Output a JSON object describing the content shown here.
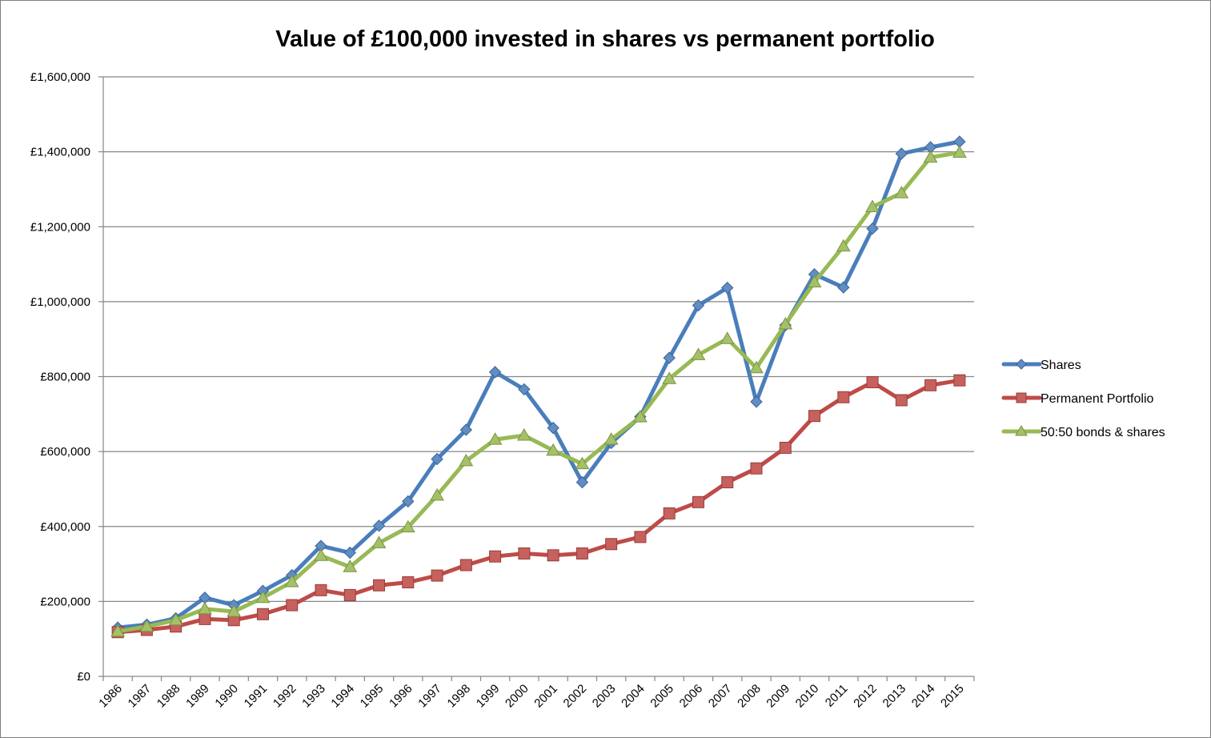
{
  "chart_data": {
    "type": "line",
    "title": "Value of £100,000 invested in shares vs permanent portfolio",
    "xlabel": "",
    "ylabel": "",
    "categories": [
      "1986",
      "1987",
      "1988",
      "1989",
      "1990",
      "1991",
      "1992",
      "1993",
      "1994",
      "1995",
      "1996",
      "1997",
      "1998",
      "1999",
      "2000",
      "2001",
      "2002",
      "2003",
      "2004",
      "2005",
      "2006",
      "2007",
      "2008",
      "2009",
      "2010",
      "2011",
      "2012",
      "2013",
      "2014",
      "2015"
    ],
    "ylim": [
      0,
      1600000
    ],
    "yticks": [
      0,
      200000,
      400000,
      600000,
      800000,
      1000000,
      1200000,
      1400000,
      1600000
    ],
    "ytick_labels": [
      "£0",
      "£200,000",
      "£400,000",
      "£600,000",
      "£800,000",
      "£1,000,000",
      "£1,200,000",
      "£1,400,000",
      "£1,600,000"
    ],
    "grid": true,
    "legend_position": "right",
    "series": [
      {
        "name": "Shares",
        "color": "#4a7ebb",
        "marker": "diamond",
        "values": [
          130000,
          138000,
          155000,
          210000,
          190000,
          228000,
          270000,
          348000,
          330000,
          402000,
          467000,
          580000,
          658000,
          812000,
          766000,
          663000,
          518000,
          623000,
          693000,
          850000,
          990000,
          1037000,
          733000,
          937000,
          1073000,
          1038000,
          1195000,
          1395000,
          1412000,
          1427000
        ]
      },
      {
        "name": "Permanent Portfolio",
        "color": "#be4b48",
        "marker": "square",
        "values": [
          118000,
          124000,
          133000,
          153000,
          150000,
          166000,
          190000,
          230000,
          217000,
          243000,
          251000,
          269000,
          297000,
          320000,
          328000,
          323000,
          328000,
          353000,
          372000,
          435000,
          465000,
          518000,
          555000,
          610000,
          695000,
          745000,
          785000,
          737000,
          777000,
          790000
        ]
      },
      {
        "name": "50:50 bonds & shares",
        "color": "#98b954",
        "marker": "triangle",
        "values": [
          120000,
          133000,
          150000,
          180000,
          173000,
          210000,
          252000,
          322000,
          292000,
          356000,
          398000,
          483000,
          575000,
          632000,
          643000,
          603000,
          567000,
          632000,
          692000,
          794000,
          858000,
          901000,
          823000,
          940000,
          1052000,
          1148000,
          1253000,
          1290000,
          1385000,
          1398000
        ]
      }
    ]
  }
}
